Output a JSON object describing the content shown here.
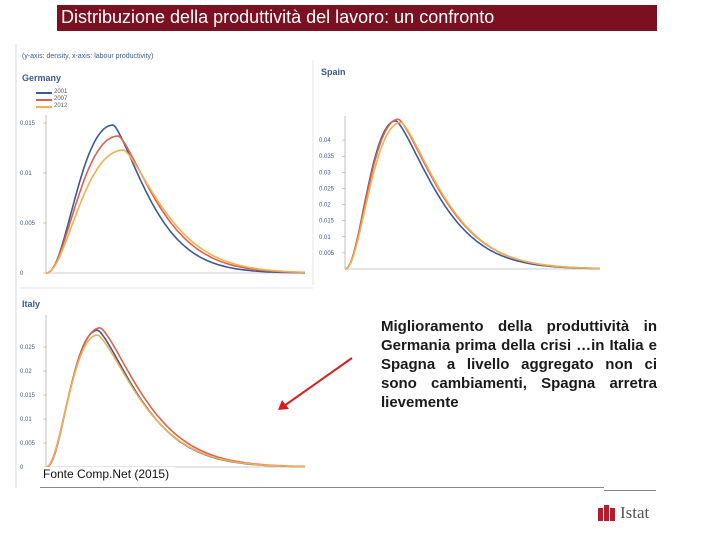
{
  "slide": {
    "title": "Distribuzione della produttività del lavoro: un confronto",
    "axis_note": "(y-axis: density, x-axis: labour productivity)",
    "note": "Miglioramento della produttività in Germania prima della crisi …in Italia e Spagna a livello aggregato non ci sono cambiamenti, Spagna arretra lievemente",
    "source": "Fonte Comp.Net (2015)",
    "logo_text": "Istat"
  },
  "colors": {
    "2001": "#3a5a9a",
    "2007": "#e0604a",
    "2012": "#f2b050",
    "title_bar": "#7a1020",
    "arrow": "#d42020"
  },
  "chart_data": [
    {
      "type": "line",
      "title": "Germany",
      "ylim": [
        0,
        0.015
      ],
      "yticks": [
        "0.015",
        "0.01",
        "0.005",
        "0"
      ],
      "legend": [
        "2001",
        "2007",
        "2012"
      ],
      "legend_position": "top-left",
      "series": [
        {
          "name": "2001",
          "peak": 0.0148,
          "mode": 0.26,
          "k": 2.5,
          "tail": 1.25
        },
        {
          "name": "2007",
          "peak": 0.0137,
          "mode": 0.28,
          "k": 2.3,
          "tail": 1.4
        },
        {
          "name": "2012",
          "peak": 0.0123,
          "mode": 0.3,
          "k": 2.2,
          "tail": 1.5
        }
      ]
    },
    {
      "type": "line",
      "title": "Spain",
      "ylim": [
        0,
        0.045
      ],
      "yticks": [
        "0.04",
        "0.035",
        "0.03",
        "0.025",
        "0.02",
        "0.015",
        "0.01",
        "0.005"
      ],
      "legend": [],
      "series": [
        {
          "name": "2001",
          "peak": 0.046,
          "mode": 0.2,
          "k": 2.4,
          "tail": 1.35
        },
        {
          "name": "2007",
          "peak": 0.0465,
          "mode": 0.21,
          "k": 2.3,
          "tail": 1.4
        },
        {
          "name": "2012",
          "peak": 0.0455,
          "mode": 0.22,
          "k": 2.3,
          "tail": 1.4
        }
      ]
    },
    {
      "type": "line",
      "title": "Italy",
      "ylim": [
        0,
        0.03
      ],
      "yticks": [
        "0.025",
        "0.02",
        "0.015",
        "0.01",
        "0.005",
        "0"
      ],
      "legend": [],
      "series": [
        {
          "name": "2001",
          "peak": 0.0285,
          "mode": 0.2,
          "k": 2.5,
          "tail": 1.35
        },
        {
          "name": "2007",
          "peak": 0.029,
          "mode": 0.21,
          "k": 2.3,
          "tail": 1.4
        },
        {
          "name": "2012",
          "peak": 0.0275,
          "mode": 0.2,
          "k": 2.4,
          "tail": 1.38
        }
      ]
    }
  ]
}
